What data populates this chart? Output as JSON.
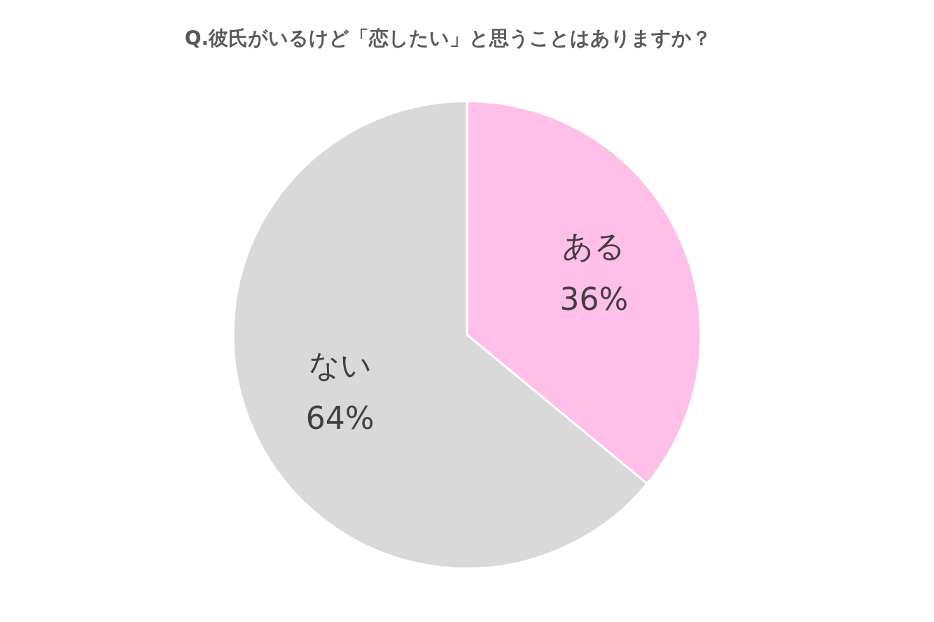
{
  "chart_data": {
    "type": "pie",
    "title": "Q.彼氏がいるけど「恋したい」と思うことはありますか？",
    "categories": [
      "ある",
      "ない"
    ],
    "values": [
      36,
      64
    ],
    "colors": [
      "#ffbfe9",
      "#d9d9d9"
    ],
    "value_labels": [
      "36%",
      "64%"
    ],
    "legend": false
  }
}
